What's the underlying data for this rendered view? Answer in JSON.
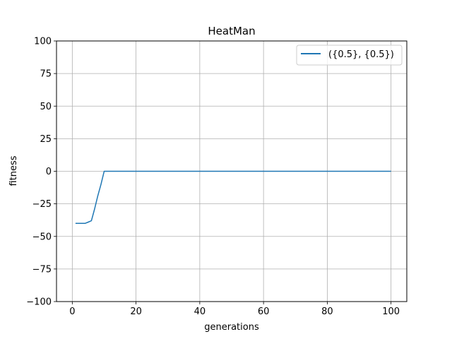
{
  "chart_data": {
    "type": "line",
    "title": "HeatMan",
    "xlabel": "generations",
    "ylabel": "fitness",
    "xlim": [
      -4.95,
      104.95
    ],
    "ylim": [
      -100,
      100
    ],
    "xticks": [
      0,
      20,
      40,
      60,
      80,
      100
    ],
    "yticks": [
      -100,
      -75,
      -50,
      -25,
      0,
      25,
      50,
      75,
      100
    ],
    "xtick_labels": [
      "0",
      "20",
      "40",
      "60",
      "80",
      "100"
    ],
    "ytick_labels": [
      "−100",
      "−75",
      "−50",
      "−25",
      "0",
      "25",
      "50",
      "75",
      "100"
    ],
    "grid": true,
    "legend_position": "top-right",
    "series": [
      {
        "name": "({0.5}, {0.5})",
        "color": "#1f77b4",
        "x": [
          1,
          2,
          3,
          4,
          5,
          6,
          7,
          8,
          9,
          10,
          20,
          30,
          40,
          50,
          60,
          70,
          80,
          90,
          100
        ],
        "y": [
          -40,
          -40,
          -40,
          -40,
          -39,
          -38,
          -29,
          -19,
          -10,
          0,
          0,
          0,
          0,
          0,
          0,
          0,
          0,
          0,
          0
        ]
      }
    ]
  }
}
